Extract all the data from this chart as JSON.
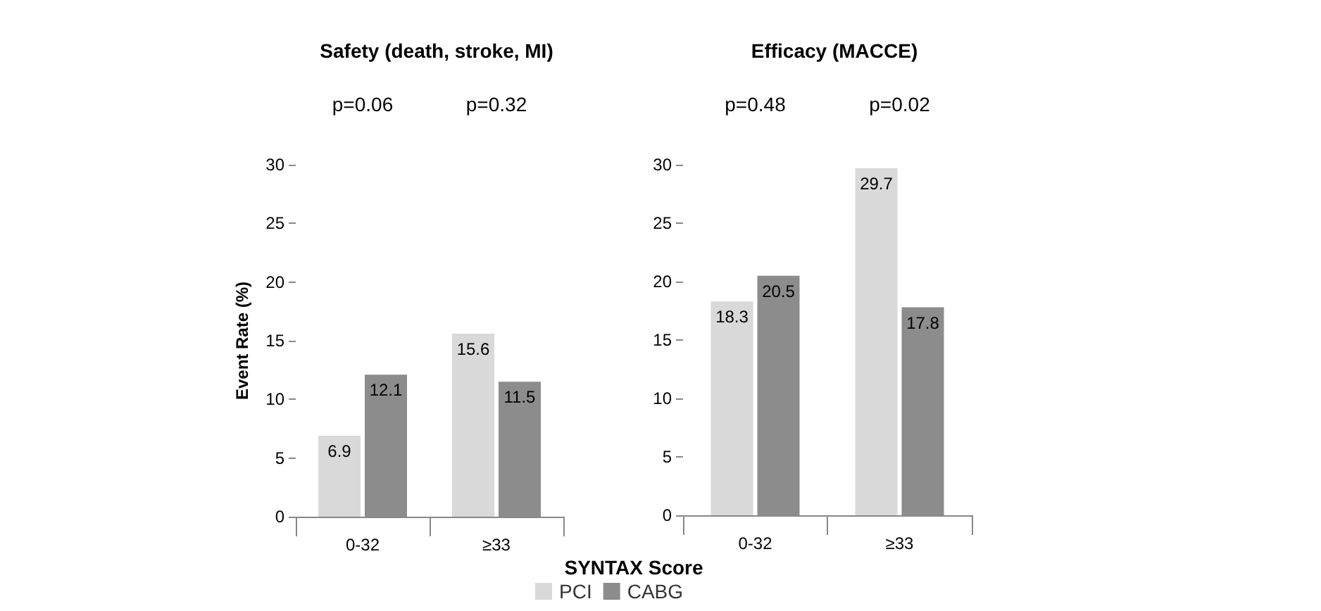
{
  "chart_data": [
    {
      "type": "bar",
      "title": "Safety (death, stroke, MI)",
      "xlabel": "SYNTAX Score",
      "ylabel": "Event Rate (%)",
      "categories": [
        "0-32",
        "≥33"
      ],
      "series": [
        {
          "name": "PCI",
          "color": "#d9d9d9",
          "values": [
            6.9,
            15.6
          ]
        },
        {
          "name": "CABG",
          "color": "#8c8c8c",
          "values": [
            12.1,
            11.5
          ]
        }
      ],
      "ylim": [
        0,
        30
      ],
      "yticks": [
        0,
        5,
        10,
        15,
        20,
        25,
        30
      ],
      "grid": false,
      "legend": "bottom",
      "data_labels": true,
      "annotations": [
        "p=0.06",
        "p=0.32"
      ]
    },
    {
      "type": "bar",
      "title": "Efficacy (MACCE)",
      "categories": [
        "0-32",
        "≥33"
      ],
      "series": [
        {
          "color": "#d9d9d9",
          "values": [
            18.3,
            29.7
          ]
        },
        {
          "color": "#8c8c8c",
          "values": [
            20.5,
            17.8
          ]
        }
      ],
      "ylim": [
        0,
        30
      ],
      "yticks": [
        0,
        5,
        10,
        15,
        20,
        25,
        30
      ],
      "grid": false,
      "data_labels": true,
      "annotations": [
        "p=0.48",
        "p=0.02"
      ]
    }
  ]
}
